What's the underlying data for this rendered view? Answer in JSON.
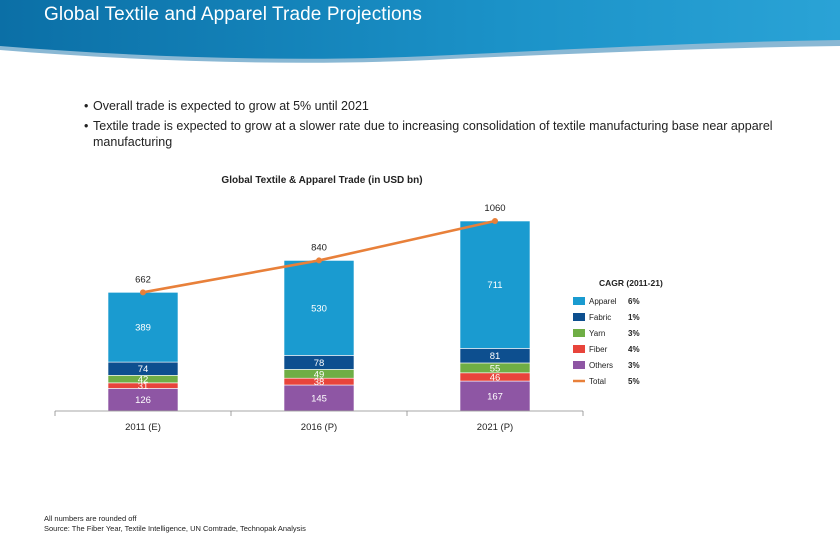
{
  "page": {
    "title": "Global Textile and Apparel Trade Projections",
    "bullets": [
      "Overall trade is expected to grow at 5% until  2021",
      "Textile trade is expected to grow at a slower rate due to increasing consolidation of textile manufacturing base near apparel manufacturing"
    ],
    "footnote": "All numbers are rounded off",
    "source": "Source: The Fiber Year, Textile Intelligence, UN Comtrade, Technopak Analysis"
  },
  "colors": {
    "header_blue": "#0e7fb6",
    "apparel": "#1a9bd0",
    "fabric": "#0d4f8f",
    "yarn": "#6fae45",
    "fiber": "#e8443b",
    "others": "#8e56a4",
    "total": "#e8803a"
  },
  "chart_data": {
    "type": "bar",
    "stacked": true,
    "title": "Global Textile & Apparel Trade (in USD bn)",
    "categories": [
      "2011 (E)",
      "2016 (P)",
      "2021 (P)"
    ],
    "series": [
      {
        "name": "Others",
        "values": [
          126,
          145,
          167
        ],
        "color": "#8e56a4"
      },
      {
        "name": "Fiber",
        "values": [
          31,
          38,
          46
        ],
        "color": "#e8443b"
      },
      {
        "name": "Yarn",
        "values": [
          42,
          49,
          55
        ],
        "color": "#6fae45"
      },
      {
        "name": "Fabric",
        "values": [
          74,
          78,
          81
        ],
        "color": "#0d4f8f"
      },
      {
        "name": "Apparel",
        "values": [
          389,
          530,
          711
        ],
        "color": "#1a9bd0"
      }
    ],
    "line": {
      "name": "Total",
      "values": [
        662,
        840,
        1060
      ],
      "color": "#e8803a"
    },
    "ylim": [
      0,
      1060
    ],
    "legend": {
      "title": "CAGR (2011-21)",
      "position": "right",
      "items": [
        {
          "name": "Apparel",
          "cagr": "6%",
          "color": "#1a9bd0",
          "kind": "box"
        },
        {
          "name": "Fabric",
          "cagr": "1%",
          "color": "#0d4f8f",
          "kind": "box"
        },
        {
          "name": "Yarn",
          "cagr": "3%",
          "color": "#6fae45",
          "kind": "box"
        },
        {
          "name": "Fiber",
          "cagr": "4%",
          "color": "#e8443b",
          "kind": "box"
        },
        {
          "name": "Others",
          "cagr": "3%",
          "color": "#8e56a4",
          "kind": "box"
        },
        {
          "name": "Total",
          "cagr": "5%",
          "color": "#e8803a",
          "kind": "line"
        }
      ]
    }
  }
}
